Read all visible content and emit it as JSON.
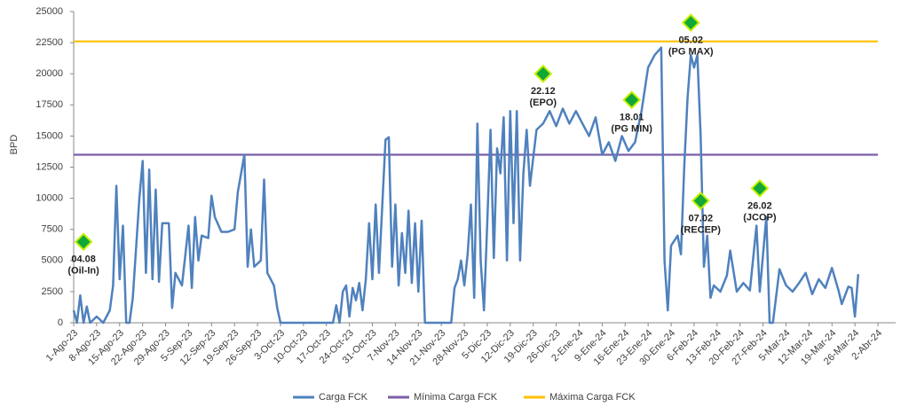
{
  "chart_data": {
    "type": "line",
    "ylabel": "BPD",
    "ylim": [
      0,
      25000
    ],
    "yticks": [
      0,
      2500,
      5000,
      7500,
      10000,
      12500,
      15000,
      17500,
      20000,
      22500,
      25000
    ],
    "xlim": [
      "2023-08-01",
      "2024-04-02"
    ],
    "xticks": [
      {
        "value": "2023-08-01",
        "label": "1-Ago-23"
      },
      {
        "value": "2023-08-08",
        "label": "8-Ago-23"
      },
      {
        "value": "2023-08-15",
        "label": "15-Ago-23"
      },
      {
        "value": "2023-08-22",
        "label": "22-Ago-23"
      },
      {
        "value": "2023-08-29",
        "label": "29-Ago-23"
      },
      {
        "value": "2023-09-05",
        "label": "5-Sep-23"
      },
      {
        "value": "2023-09-12",
        "label": "12-Sep-23"
      },
      {
        "value": "2023-09-19",
        "label": "19-Sep-23"
      },
      {
        "value": "2023-09-26",
        "label": "26-Sep-23"
      },
      {
        "value": "2023-10-03",
        "label": "3-Oct-23"
      },
      {
        "value": "2023-10-10",
        "label": "10-Oct-23"
      },
      {
        "value": "2023-10-17",
        "label": "17-Oct-23"
      },
      {
        "value": "2023-10-24",
        "label": "24-Oct-23"
      },
      {
        "value": "2023-10-31",
        "label": "31-Oct-23"
      },
      {
        "value": "2023-11-07",
        "label": "7-Nov-23"
      },
      {
        "value": "2023-11-14",
        "label": "14-Nov-23"
      },
      {
        "value": "2023-11-21",
        "label": "21-Nov-23"
      },
      {
        "value": "2023-11-28",
        "label": "28-Nov-23"
      },
      {
        "value": "2023-12-05",
        "label": "5-Dic-23"
      },
      {
        "value": "2023-12-12",
        "label": "12-Dic-23"
      },
      {
        "value": "2023-12-19",
        "label": "19-Dic-23"
      },
      {
        "value": "2023-12-26",
        "label": "26-Dic-23"
      },
      {
        "value": "2024-01-02",
        "label": "2-Ene-24"
      },
      {
        "value": "2024-01-09",
        "label": "9-Ene-24"
      },
      {
        "value": "2024-01-16",
        "label": "16-Ene-24"
      },
      {
        "value": "2024-01-23",
        "label": "23-Ene-24"
      },
      {
        "value": "2024-01-30",
        "label": "30-Ene-24"
      },
      {
        "value": "2024-02-06",
        "label": "6-Feb-24"
      },
      {
        "value": "2024-02-13",
        "label": "13-Feb-24"
      },
      {
        "value": "2024-02-20",
        "label": "20-Feb-24"
      },
      {
        "value": "2024-02-27",
        "label": "27-Feb-24"
      },
      {
        "value": "2024-03-05",
        "label": "5-Mar-24"
      },
      {
        "value": "2024-03-12",
        "label": "12-Mar-24"
      },
      {
        "value": "2024-03-19",
        "label": "19-Mar-24"
      },
      {
        "value": "2024-03-26",
        "label": "26-Mar-24"
      },
      {
        "value": "2024-04-02",
        "label": "2-Abr-24"
      }
    ],
    "series": [
      {
        "name": "Carga FCK",
        "color": "#4f81bd",
        "x": [
          "2023-08-01",
          "2023-08-02",
          "2023-08-03",
          "2023-08-04",
          "2023-08-05",
          "2023-08-06",
          "2023-08-08",
          "2023-08-10",
          "2023-08-12",
          "2023-08-13",
          "2023-08-14",
          "2023-08-15",
          "2023-08-16",
          "2023-08-17",
          "2023-08-18",
          "2023-08-19",
          "2023-08-20",
          "2023-08-21",
          "2023-08-22",
          "2023-08-23",
          "2023-08-24",
          "2023-08-25",
          "2023-08-26",
          "2023-08-27",
          "2023-08-28",
          "2023-08-30",
          "2023-08-31",
          "2023-09-01",
          "2023-09-03",
          "2023-09-05",
          "2023-09-06",
          "2023-09-07",
          "2023-09-08",
          "2023-09-09",
          "2023-09-11",
          "2023-09-12",
          "2023-09-13",
          "2023-09-15",
          "2023-09-17",
          "2023-09-19",
          "2023-09-20",
          "2023-09-22",
          "2023-09-23",
          "2023-09-24",
          "2023-09-25",
          "2023-09-27",
          "2023-09-28",
          "2023-09-29",
          "2023-10-01",
          "2023-10-02",
          "2023-10-03",
          "2023-10-10",
          "2023-10-19",
          "2023-10-20",
          "2023-10-21",
          "2023-10-22",
          "2023-10-23",
          "2023-10-24",
          "2023-10-25",
          "2023-10-26",
          "2023-10-27",
          "2023-10-28",
          "2023-10-29",
          "2023-10-30",
          "2023-10-31",
          "2023-11-01",
          "2023-11-02",
          "2023-11-04",
          "2023-11-05",
          "2023-11-06",
          "2023-11-07",
          "2023-11-08",
          "2023-11-09",
          "2023-11-10",
          "2023-11-11",
          "2023-11-12",
          "2023-11-13",
          "2023-11-14",
          "2023-11-15",
          "2023-11-16",
          "2023-11-20",
          "2023-11-24",
          "2023-11-25",
          "2023-11-26",
          "2023-11-27",
          "2023-11-28",
          "2023-11-29",
          "2023-11-30",
          "2023-12-01",
          "2023-12-02",
          "2023-12-03",
          "2023-12-04",
          "2023-12-05",
          "2023-12-06",
          "2023-12-07",
          "2023-12-08",
          "2023-12-09",
          "2023-12-10",
          "2023-12-11",
          "2023-12-12",
          "2023-12-13",
          "2023-12-14",
          "2023-12-15",
          "2023-12-16",
          "2023-12-17",
          "2023-12-18",
          "2023-12-20",
          "2023-12-22",
          "2023-12-24",
          "2023-12-26",
          "2023-12-28",
          "2023-12-30",
          "2024-01-01",
          "2024-01-03",
          "2024-01-05",
          "2024-01-07",
          "2024-01-09",
          "2024-01-11",
          "2024-01-13",
          "2024-01-15",
          "2024-01-17",
          "2024-01-19",
          "2024-01-21",
          "2024-01-23",
          "2024-01-25",
          "2024-01-27",
          "2024-01-28",
          "2024-01-29",
          "2024-01-30",
          "2024-02-01",
          "2024-02-02",
          "2024-02-03",
          "2024-02-04",
          "2024-02-05",
          "2024-02-06",
          "2024-02-07",
          "2024-02-08",
          "2024-02-09",
          "2024-02-10",
          "2024-02-11",
          "2024-02-12",
          "2024-02-14",
          "2024-02-16",
          "2024-02-17",
          "2024-02-19",
          "2024-02-21",
          "2024-02-23",
          "2024-02-25",
          "2024-02-26",
          "2024-02-28",
          "2024-02-29",
          "2024-03-01",
          "2024-03-03",
          "2024-03-05",
          "2024-03-07",
          "2024-03-09",
          "2024-03-11",
          "2024-03-13",
          "2024-03-15",
          "2024-03-17",
          "2024-03-19",
          "2024-03-21",
          "2024-03-22",
          "2024-03-24",
          "2024-03-25",
          "2024-03-26",
          "2024-03-27"
        ],
        "values": [
          1000,
          0,
          2200,
          0,
          1300,
          0,
          500,
          0,
          1000,
          3000,
          11000,
          3500,
          7800,
          0,
          0,
          2000,
          6000,
          10000,
          13000,
          4000,
          12300,
          3500,
          10700,
          3300,
          8000,
          8000,
          1200,
          4000,
          3000,
          7800,
          2800,
          8500,
          5000,
          7000,
          6800,
          10200,
          8500,
          7300,
          7300,
          7500,
          10500,
          13500,
          4500,
          7500,
          4500,
          5000,
          11500,
          4000,
          3000,
          1200,
          0,
          0,
          0,
          1400,
          0,
          2500,
          3000,
          500,
          2800,
          1800,
          3200,
          1000,
          3500,
          8000,
          3500,
          9500,
          4000,
          14700,
          14900,
          4500,
          9500,
          3000,
          7200,
          4000,
          9000,
          3200,
          8000,
          2500,
          8200,
          0,
          0,
          0,
          2800,
          3500,
          5000,
          3000,
          5500,
          9500,
          2000,
          16000,
          5000,
          1000,
          8000,
          15500,
          5200,
          14000,
          12000,
          16500,
          5000,
          17000,
          8000,
          17000,
          5000,
          12000,
          15500,
          11000,
          15500,
          16000,
          17000,
          15800,
          17200,
          16000,
          17000,
          16000,
          15000,
          16500,
          13500,
          14500,
          13000,
          15000,
          13800,
          14500,
          17000,
          20500,
          21500,
          22100,
          5000,
          1000,
          6200,
          7000,
          5500,
          12500,
          18000,
          21500,
          20500,
          21500,
          15000,
          4500,
          7000,
          2000,
          3000,
          2500,
          3800,
          5800,
          2500,
          3200,
          2600,
          7800,
          2500,
          8500,
          0,
          0,
          4300,
          3000,
          2500,
          3200,
          4000,
          2300,
          3500,
          2800,
          4400,
          2600,
          1500,
          2900,
          2800,
          500,
          3900
        ]
      },
      {
        "name": "Mínima Carga FCK",
        "color": "#7b5ea7",
        "x": [
          "2023-08-01",
          "2024-04-02"
        ],
        "values": [
          13500,
          13500
        ]
      },
      {
        "name": "Máxima Carga FCK",
        "color": "#ffc000",
        "x": [
          "2023-08-01",
          "2024-04-02"
        ],
        "values": [
          22600,
          22600
        ]
      }
    ],
    "marker_color": "#12a838",
    "marker_edge": "#c6f000",
    "annotations": [
      {
        "x": "2023-08-04",
        "y": 6500,
        "label": "04.08",
        "sublabel": "(Oil-In)"
      },
      {
        "x": "2023-12-22",
        "y": 20000,
        "label": "22.12",
        "sublabel": "(EPO)"
      },
      {
        "x": "2024-01-18",
        "y": 17900,
        "label": "18.01",
        "sublabel": "(PG MIN)"
      },
      {
        "x": "2024-02-05",
        "y": 24100,
        "label": "05.02",
        "sublabel": "(PG MAX)"
      },
      {
        "x": "2024-02-08",
        "y": 9800,
        "label": "07.02",
        "sublabel": "(RECEP)"
      },
      {
        "x": "2024-02-26",
        "y": 10800,
        "label": "26.02",
        "sublabel": "(JCOP)"
      }
    ]
  }
}
